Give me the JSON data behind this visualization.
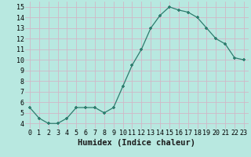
{
  "x": [
    0,
    1,
    2,
    3,
    4,
    5,
    6,
    7,
    8,
    9,
    10,
    11,
    12,
    13,
    14,
    15,
    16,
    17,
    18,
    19,
    20,
    21,
    22,
    23
  ],
  "y": [
    5.5,
    4.5,
    4.0,
    4.0,
    4.5,
    5.5,
    5.5,
    5.5,
    5.0,
    5.5,
    7.5,
    9.5,
    11.0,
    13.0,
    14.2,
    15.0,
    14.7,
    14.5,
    14.0,
    13.0,
    12.0,
    11.5,
    10.2,
    10.0
  ],
  "xlabel": "Humidex (Indice chaleur)",
  "xlim": [
    -0.5,
    23.5
  ],
  "ylim": [
    3.5,
    15.5
  ],
  "yticks": [
    4,
    5,
    6,
    7,
    8,
    9,
    10,
    11,
    12,
    13,
    14,
    15
  ],
  "xticks": [
    0,
    1,
    2,
    3,
    4,
    5,
    6,
    7,
    8,
    9,
    10,
    11,
    12,
    13,
    14,
    15,
    16,
    17,
    18,
    19,
    20,
    21,
    22,
    23
  ],
  "line_color": "#2d7d6e",
  "marker_color": "#2d7d6e",
  "bg_color": "#b8e8e0",
  "grid_color": "#d0b8c8",
  "tick_label_fontsize": 6.0,
  "xlabel_fontsize": 7.5
}
